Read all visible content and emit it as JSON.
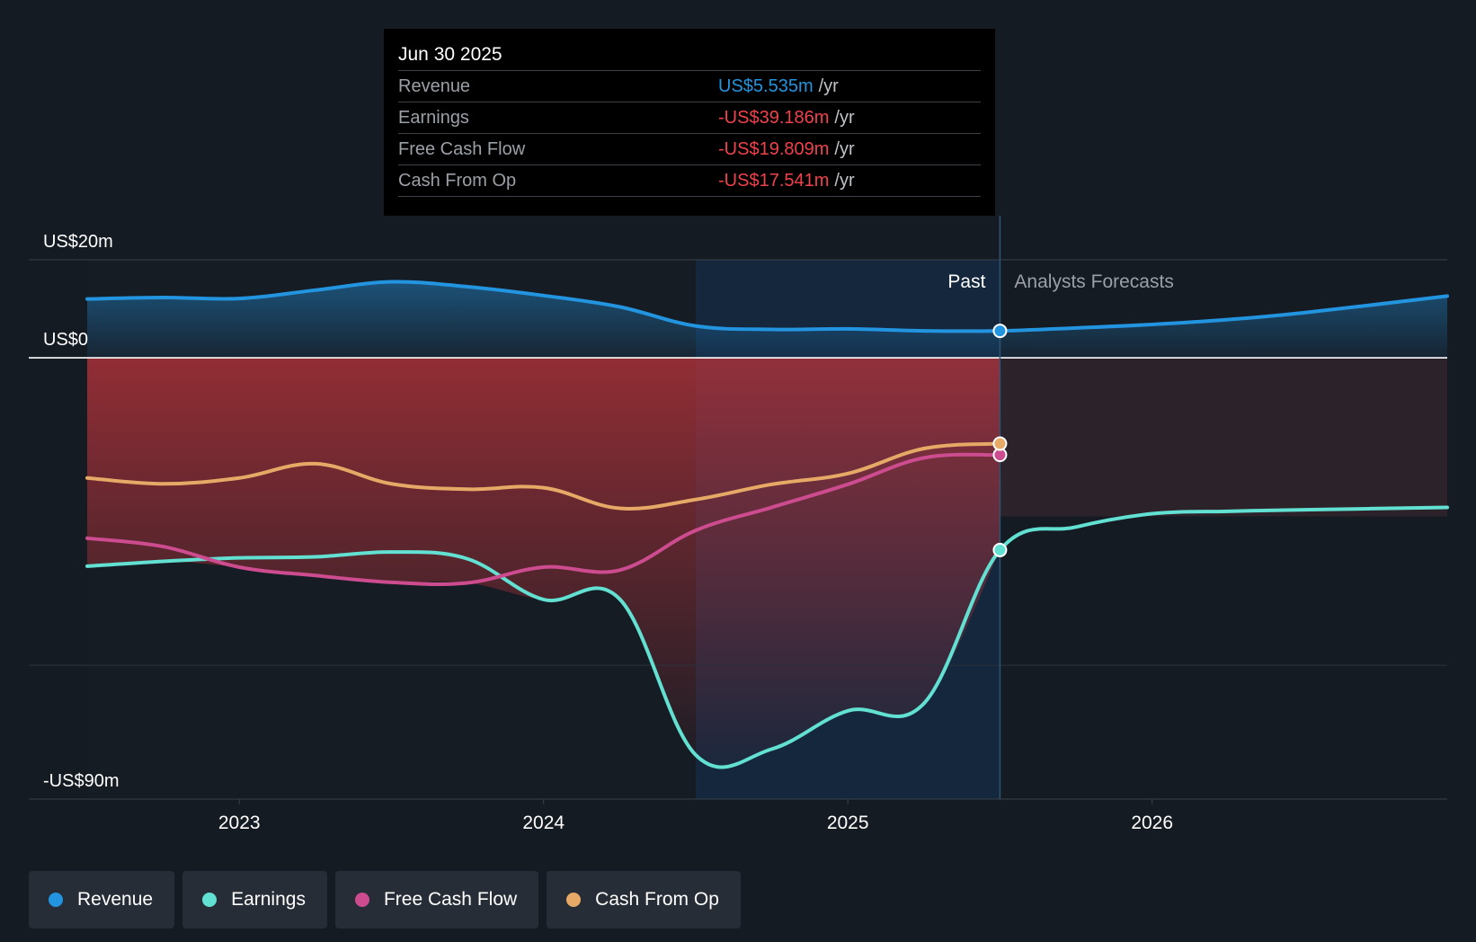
{
  "colors": {
    "revenue": "#2394df",
    "earnings": "#62e0d1",
    "free_cash_flow": "#cc4c8f",
    "cash_from_op": "#e6a966",
    "negative_text": "#f0424d",
    "background": "#151b23"
  },
  "tooltip": {
    "date": "Jun 30 2025",
    "rows": [
      {
        "label": "Revenue",
        "value": "US$5.535m",
        "unit": "/yr"
      },
      {
        "label": "Earnings",
        "value": "-US$39.186m",
        "unit": "/yr"
      },
      {
        "label": "Free Cash Flow",
        "value": "-US$19.809m",
        "unit": "/yr"
      },
      {
        "label": "Cash From Op",
        "value": "-US$17.541m",
        "unit": "/yr"
      }
    ]
  },
  "past_label": "Past",
  "forecast_label": "Analysts Forecasts",
  "legend": [
    {
      "label": "Revenue",
      "icon": "dot-icon"
    },
    {
      "label": "Earnings",
      "icon": "dot-icon"
    },
    {
      "label": "Free Cash Flow",
      "icon": "dot-icon"
    },
    {
      "label": "Cash From Op",
      "icon": "dot-icon"
    }
  ],
  "chart_data": {
    "type": "line",
    "title": "",
    "xlabel": "",
    "ylabel": "",
    "y_tick_labels": [
      "US$20m",
      "US$0",
      "-US$90m"
    ],
    "y_ticks": [
      20,
      0,
      -90
    ],
    "ylim": [
      -90,
      20
    ],
    "xlim": [
      2022.5,
      2026.97
    ],
    "x_tick_labels": [
      "2023",
      "2024",
      "2025",
      "2026"
    ],
    "x_ticks": [
      2023,
      2024,
      2025,
      2026
    ],
    "past_range": [
      2024.5,
      2025.5
    ],
    "forecast_start": 2025.5,
    "series": [
      {
        "name": "Revenue",
        "x": [
          2022.5,
          2022.75,
          2023.0,
          2023.25,
          2023.5,
          2023.75,
          2024.0,
          2024.25,
          2024.5,
          2024.75,
          2025.0,
          2025.25,
          2025.5,
          2025.75,
          2026.0,
          2026.25,
          2026.5,
          2026.97
        ],
        "y": [
          12.0,
          12.3,
          12.1,
          13.8,
          15.5,
          14.5,
          12.7,
          10.4,
          6.5,
          5.8,
          5.9,
          5.5,
          5.5,
          6.1,
          6.8,
          7.8,
          9.2,
          12.6
        ]
      },
      {
        "name": "Earnings",
        "x": [
          2022.5,
          2022.75,
          2023.0,
          2023.25,
          2023.5,
          2023.75,
          2024.0,
          2024.25,
          2024.5,
          2024.75,
          2025.0,
          2025.25,
          2025.5,
          2025.75,
          2026.0,
          2026.25,
          2026.5,
          2026.97
        ],
        "y": [
          -42.5,
          -41.5,
          -40.8,
          -40.6,
          -39.6,
          -41.0,
          -49.3,
          -49.2,
          -81.0,
          -79.8,
          -72.0,
          -70.5,
          -39.2,
          -34.5,
          -31.8,
          -31.3,
          -31.0,
          -30.5
        ]
      },
      {
        "name": "Free Cash Flow",
        "x": [
          2022.5,
          2022.75,
          2023.0,
          2023.25,
          2023.5,
          2023.75,
          2024.0,
          2024.25,
          2024.5,
          2024.75,
          2025.0,
          2025.25,
          2025.5
        ],
        "y": [
          -36.8,
          -38.5,
          -42.7,
          -44.4,
          -45.8,
          -45.9,
          -42.7,
          -43.3,
          -35.2,
          -30.5,
          -25.8,
          -20.4,
          -19.8
        ]
      },
      {
        "name": "Cash From Op",
        "x": [
          2022.5,
          2022.75,
          2023.0,
          2023.25,
          2023.5,
          2023.75,
          2024.0,
          2024.25,
          2024.5,
          2024.75,
          2025.0,
          2025.25,
          2025.5
        ],
        "y": [
          -24.5,
          -25.7,
          -24.5,
          -21.6,
          -25.7,
          -26.8,
          -26.5,
          -30.7,
          -28.9,
          -25.8,
          -23.6,
          -18.5,
          -17.5
        ]
      }
    ]
  }
}
